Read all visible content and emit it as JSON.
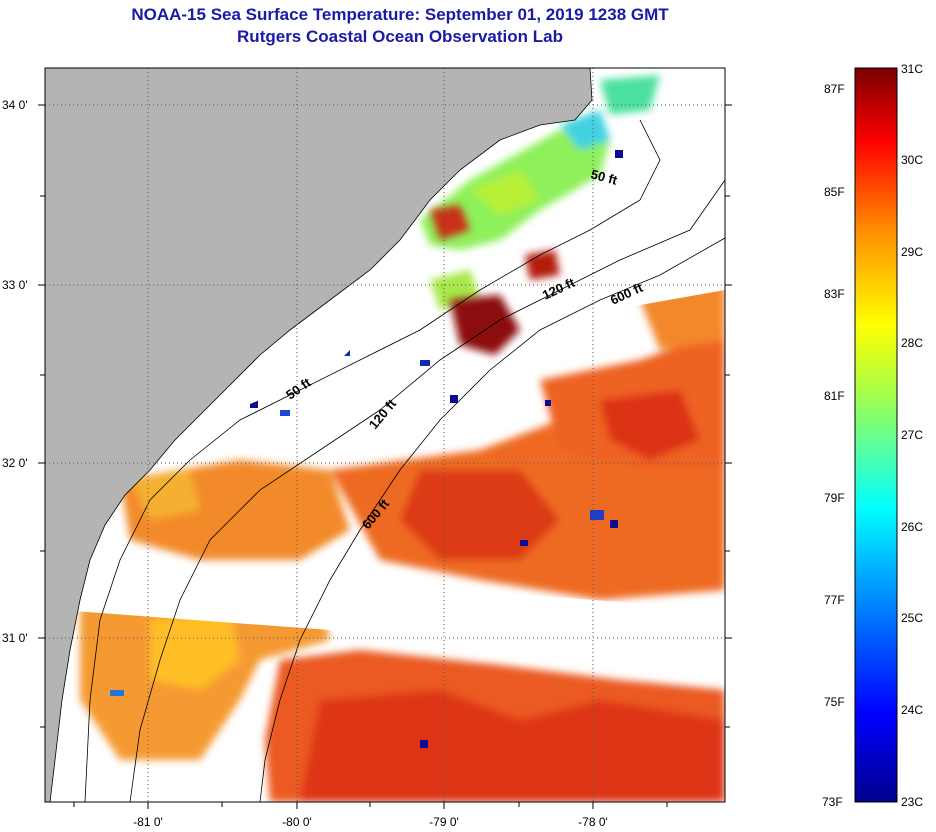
{
  "header": {
    "title": "NOAA-15 Sea Surface Temperature:  September 01, 2019 1238 GMT",
    "subtitle": "Rutgers Coastal Ocean Observation Lab"
  },
  "map": {
    "lat_labels": [
      "34 0'",
      "33 0'",
      "32 0'",
      "31 0'"
    ],
    "lon_labels": [
      "-81 0'",
      "-80 0'",
      "-79 0'",
      "-78 0'"
    ],
    "contour_labels": [
      "50 ft",
      "120 ft",
      "600 ft",
      "50 ft",
      "120 ft",
      "600 ft"
    ],
    "colors": {
      "land": "#b4b4b4",
      "cloud": "#ffffff",
      "warm": "#f07828",
      "hot": "#dc2814",
      "cool": "#78e650",
      "cold": "#0a0a96"
    }
  },
  "colorbar": {
    "fahrenheit_labels": [
      "87F",
      "85F",
      "83F",
      "81F",
      "79F",
      "77F",
      "75F",
      "73F"
    ],
    "celsius_labels": [
      "31C",
      "30C",
      "29C",
      "28C",
      "27C",
      "26C",
      "25C",
      "24C",
      "23C"
    ],
    "range_c": [
      23,
      31
    ],
    "range_f": [
      73,
      87
    ]
  }
}
